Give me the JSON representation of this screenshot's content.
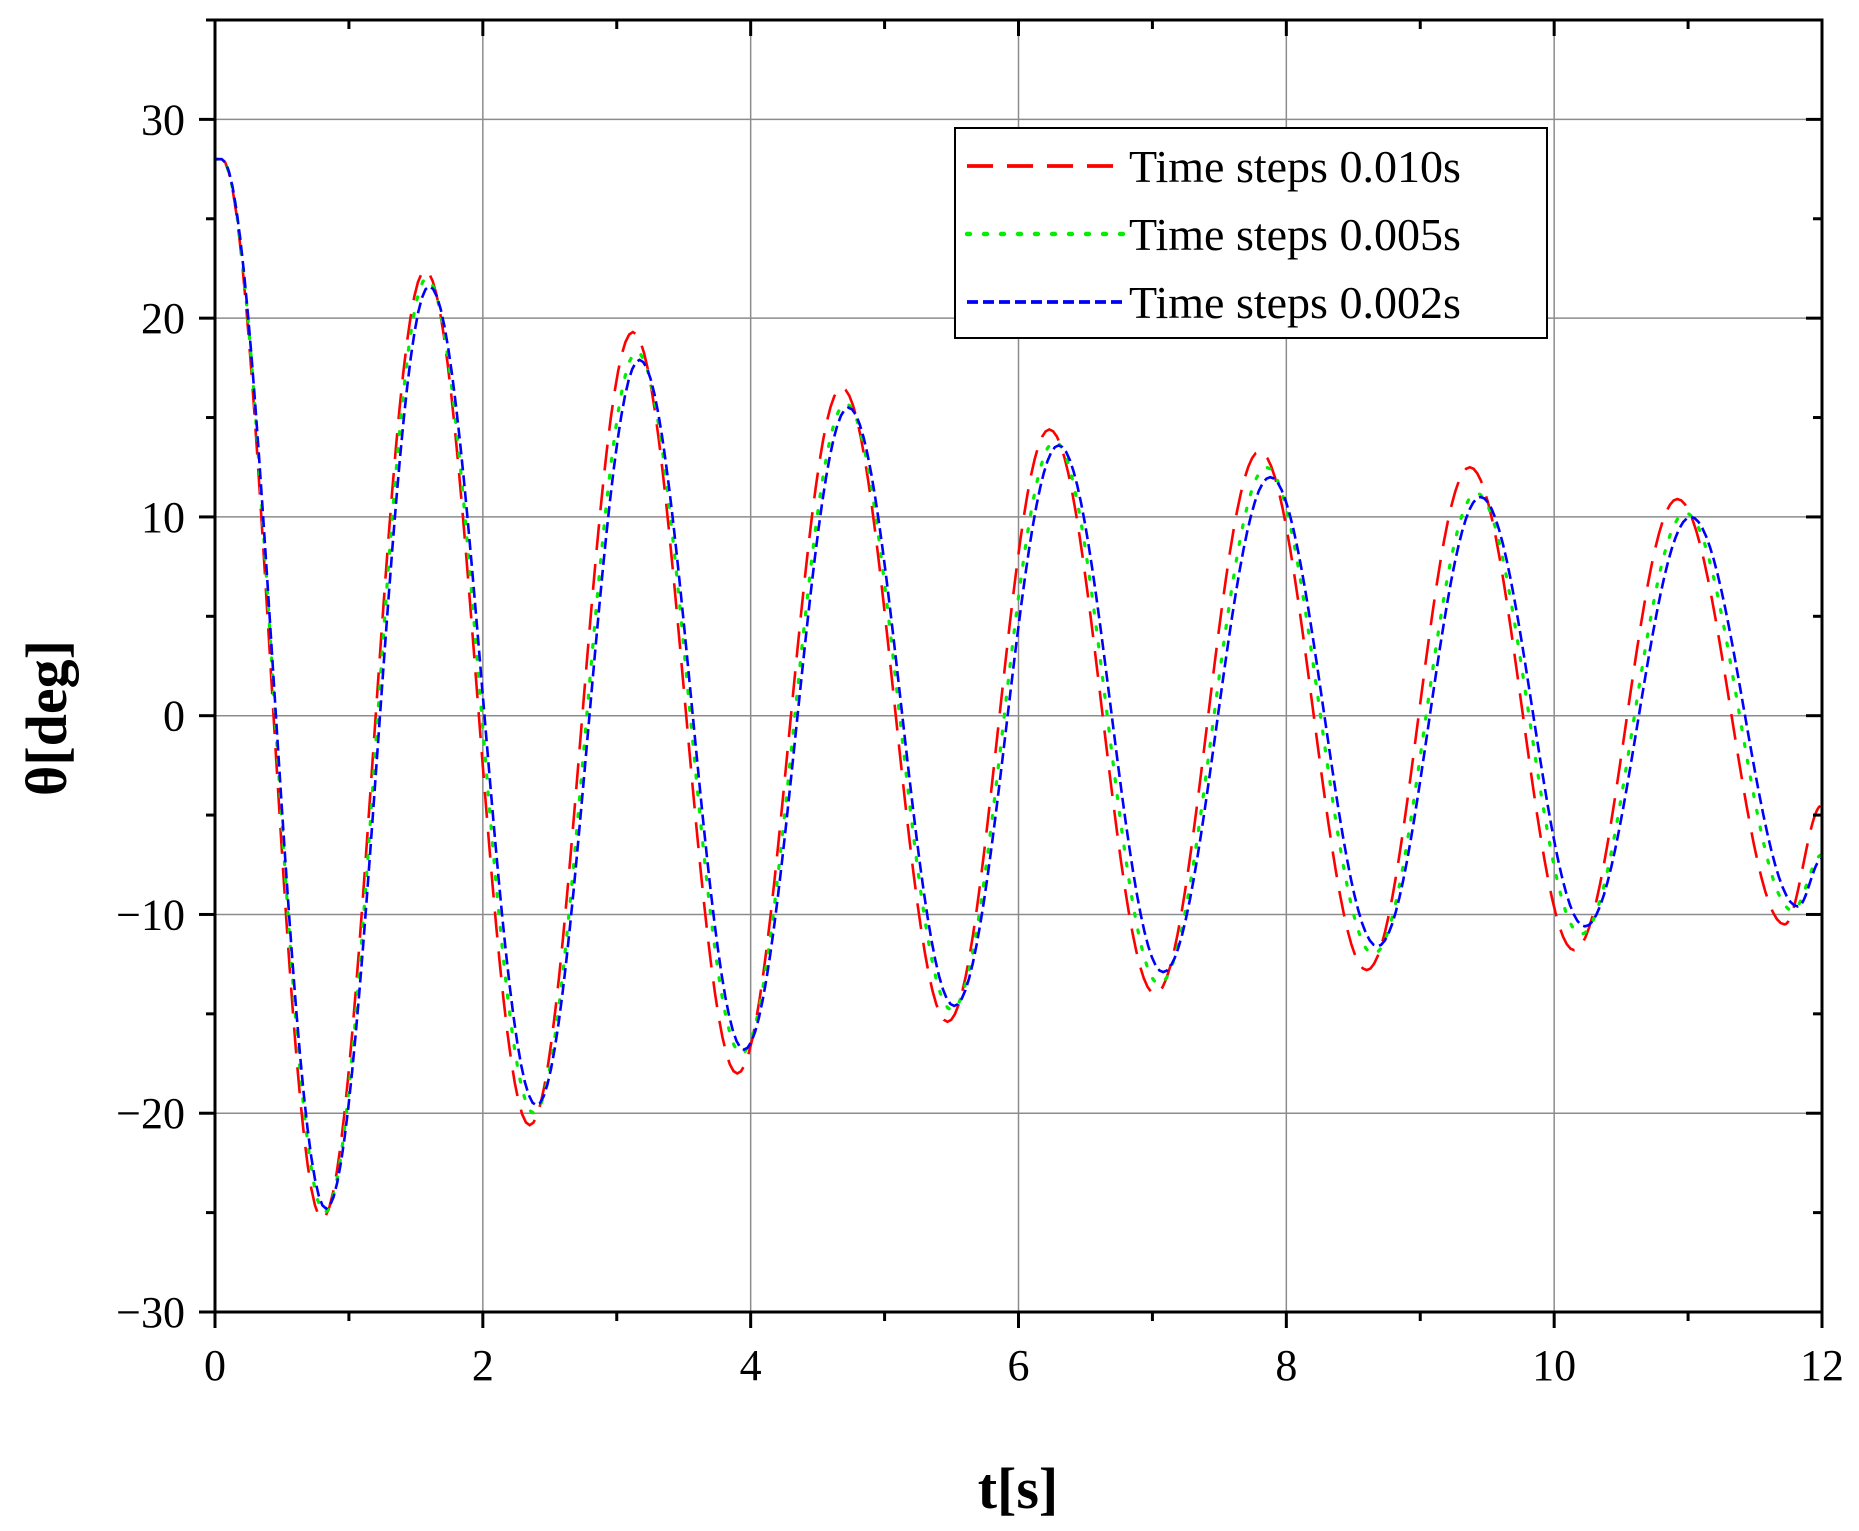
{
  "chart_data": {
    "type": "line",
    "title": "",
    "xlabel": "t[s]",
    "ylabel": "θ[deg]",
    "xlim": [
      0,
      12
    ],
    "ylim": [
      -30,
      35
    ],
    "xticks": [
      0,
      2,
      4,
      6,
      8,
      10,
      12
    ],
    "yticks": [
      -30,
      -20,
      -10,
      0,
      10,
      20,
      30
    ],
    "xtick_labels": [
      "0",
      "2",
      "4",
      "6",
      "8",
      "10",
      "12"
    ],
    "ytick_labels": [
      "−30",
      "−20",
      "−10",
      "0",
      "10",
      "20",
      "30"
    ],
    "grid": true,
    "legend_position": "top-right",
    "series": [
      {
        "name": "Time steps 0.010s",
        "color": "#ff0000",
        "style": "dashed",
        "x": [
          0.0,
          0.05,
          0.8,
          1.57,
          2.35,
          3.12,
          3.9,
          4.68,
          5.47,
          6.23,
          7.02,
          7.8,
          8.6,
          9.37,
          10.15,
          10.92,
          11.72,
          12.0
        ],
        "y": [
          28.0,
          28.0,
          -25.3,
          22.4,
          -20.6,
          19.3,
          -18.0,
          16.5,
          -15.4,
          14.4,
          -14.0,
          13.3,
          -12.8,
          12.5,
          -11.8,
          10.9,
          -10.5,
          -4.5
        ]
      },
      {
        "name": "Time steps 0.005s",
        "color": "#00ee00",
        "style": "dotted",
        "x": [
          0.0,
          0.05,
          0.82,
          1.58,
          2.38,
          3.15,
          3.93,
          4.71,
          5.5,
          6.27,
          7.05,
          7.85,
          8.65,
          9.42,
          10.2,
          10.98,
          11.78,
          12.0
        ],
        "y": [
          28.0,
          28.0,
          -25.0,
          22.0,
          -20.0,
          18.3,
          -17.0,
          15.7,
          -14.8,
          13.8,
          -13.5,
          12.5,
          -12.0,
          11.2,
          -11.0,
          10.2,
          -9.8,
          -7.0
        ]
      },
      {
        "name": "Time steps 0.002s",
        "color": "#0000ff",
        "style": "short-dashed",
        "x": [
          0.0,
          0.05,
          0.83,
          1.6,
          2.4,
          3.17,
          3.95,
          4.73,
          5.52,
          6.3,
          7.08,
          7.88,
          8.68,
          9.45,
          10.23,
          11.02,
          11.82,
          12.0
        ],
        "y": [
          28.0,
          28.0,
          -24.8,
          21.6,
          -19.6,
          17.9,
          -16.8,
          15.5,
          -14.6,
          13.6,
          -12.9,
          12.0,
          -11.6,
          11.0,
          -10.6,
          10.0,
          -9.6,
          -7.2
        ]
      }
    ]
  }
}
